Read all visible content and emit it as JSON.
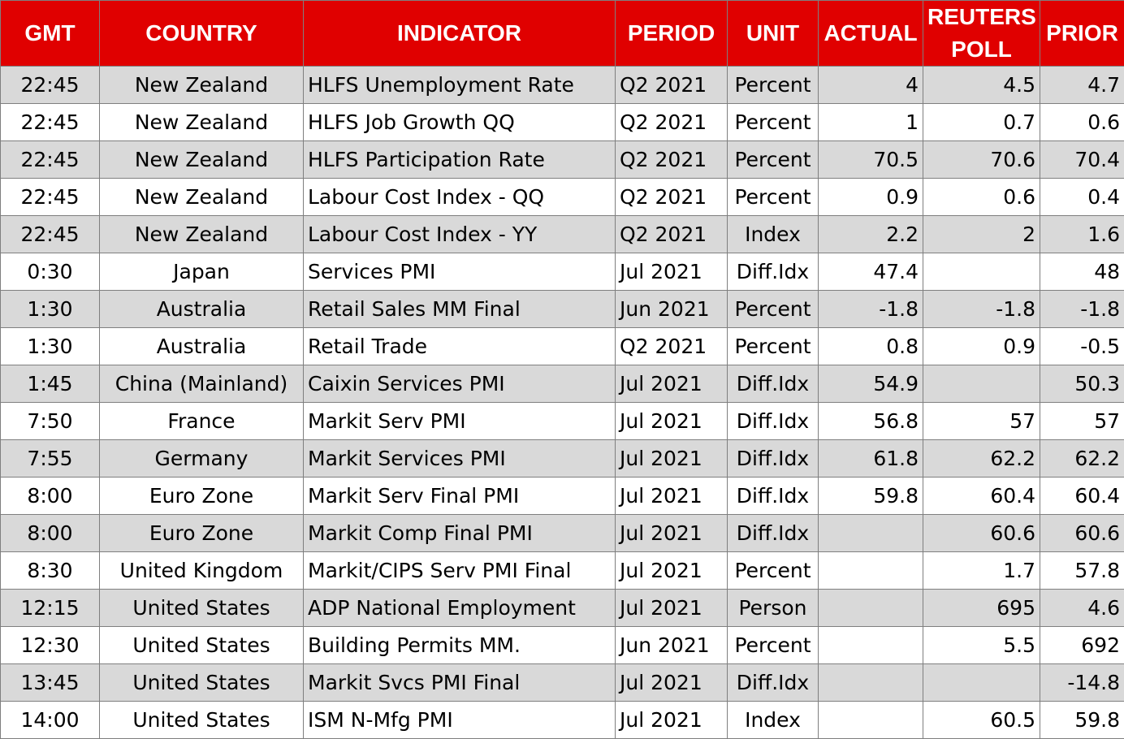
{
  "headers": {
    "gmt": "GMT",
    "country": "COUNTRY",
    "indicator": "INDICATOR",
    "period": "PERIOD",
    "unit": "UNIT",
    "actual": "ACTUAL",
    "poll": "REUTERS POLL",
    "prior": "PRIOR"
  },
  "colors": {
    "header_bg": "#e00000",
    "header_text": "#ffffff",
    "shaded_row": "#d9d9d9"
  },
  "rows": [
    {
      "gmt": "22:45",
      "country": "New Zealand",
      "indicator": "HLFS Unemployment Rate",
      "period": "Q2 2021",
      "unit": "Percent",
      "actual": "4",
      "poll": "4.5",
      "prior": "4.7"
    },
    {
      "gmt": "22:45",
      "country": "New Zealand",
      "indicator": "HLFS Job Growth QQ",
      "period": "Q2 2021",
      "unit": "Percent",
      "actual": "1",
      "poll": "0.7",
      "prior": "0.6"
    },
    {
      "gmt": "22:45",
      "country": "New Zealand",
      "indicator": "HLFS Participation Rate",
      "period": "Q2 2021",
      "unit": "Percent",
      "actual": "70.5",
      "poll": "70.6",
      "prior": "70.4"
    },
    {
      "gmt": "22:45",
      "country": "New Zealand",
      "indicator": "Labour Cost Index - QQ",
      "period": "Q2 2021",
      "unit": "Percent",
      "actual": "0.9",
      "poll": "0.6",
      "prior": "0.4"
    },
    {
      "gmt": "22:45",
      "country": "New Zealand",
      "indicator": "Labour Cost Index - YY",
      "period": "Q2 2021",
      "unit": "Index",
      "actual": "2.2",
      "poll": "2",
      "prior": "1.6"
    },
    {
      "gmt": "0:30",
      "country": "Japan",
      "indicator": "Services PMI",
      "period": "Jul 2021",
      "unit": "Diff.Idx",
      "actual": "47.4",
      "poll": "",
      "prior": "48"
    },
    {
      "gmt": "1:30",
      "country": "Australia",
      "indicator": "Retail Sales MM Final",
      "period": "Jun 2021",
      "unit": "Percent",
      "actual": "-1.8",
      "poll": "-1.8",
      "prior": "-1.8"
    },
    {
      "gmt": "1:30",
      "country": "Australia",
      "indicator": "Retail Trade",
      "period": "Q2 2021",
      "unit": "Percent",
      "actual": "0.8",
      "poll": "0.9",
      "prior": "-0.5"
    },
    {
      "gmt": "1:45",
      "country": "China (Mainland)",
      "indicator": "Caixin Services PMI",
      "period": "Jul 2021",
      "unit": "Diff.Idx",
      "actual": "54.9",
      "poll": "",
      "prior": "50.3"
    },
    {
      "gmt": "7:50",
      "country": "France",
      "indicator": "Markit Serv PMI",
      "period": "Jul 2021",
      "unit": "Diff.Idx",
      "actual": "56.8",
      "poll": "57",
      "prior": "57"
    },
    {
      "gmt": "7:55",
      "country": "Germany",
      "indicator": "Markit Services PMI",
      "period": "Jul 2021",
      "unit": "Diff.Idx",
      "actual": "61.8",
      "poll": "62.2",
      "prior": "62.2"
    },
    {
      "gmt": "8:00",
      "country": "Euro Zone",
      "indicator": "Markit Serv Final PMI",
      "period": "Jul 2021",
      "unit": "Diff.Idx",
      "actual": "59.8",
      "poll": "60.4",
      "prior": "60.4"
    },
    {
      "gmt": "8:00",
      "country": "Euro Zone",
      "indicator": "Markit Comp Final PMI",
      "period": "Jul 2021",
      "unit": "Diff.Idx",
      "actual": "",
      "poll": "60.6",
      "prior": "60.6"
    },
    {
      "gmt": "8:30",
      "country": "United Kingdom",
      "indicator": "Markit/CIPS Serv PMI Final",
      "period": "Jul 2021",
      "unit": "Percent",
      "actual": "",
      "poll": "1.7",
      "prior": "57.8"
    },
    {
      "gmt": "12:15",
      "country": "United States",
      "indicator": "ADP National Employment",
      "period": "Jul 2021",
      "unit": "Person",
      "actual": "",
      "poll": "695",
      "prior": "4.6"
    },
    {
      "gmt": "12:30",
      "country": "United States",
      "indicator": "Building Permits MM.",
      "period": "Jun 2021",
      "unit": "Percent",
      "actual": "",
      "poll": "5.5",
      "prior": "692"
    },
    {
      "gmt": "13:45",
      "country": "United States",
      "indicator": "Markit Svcs PMI Final",
      "period": "Jul 2021",
      "unit": "Diff.Idx",
      "actual": "",
      "poll": "",
      "prior": "-14.8"
    },
    {
      "gmt": "14:00",
      "country": "United States",
      "indicator": "ISM N-Mfg PMI",
      "period": "Jul 2021",
      "unit": "Index",
      "actual": "",
      "poll": "60.5",
      "prior": "59.8"
    }
  ]
}
